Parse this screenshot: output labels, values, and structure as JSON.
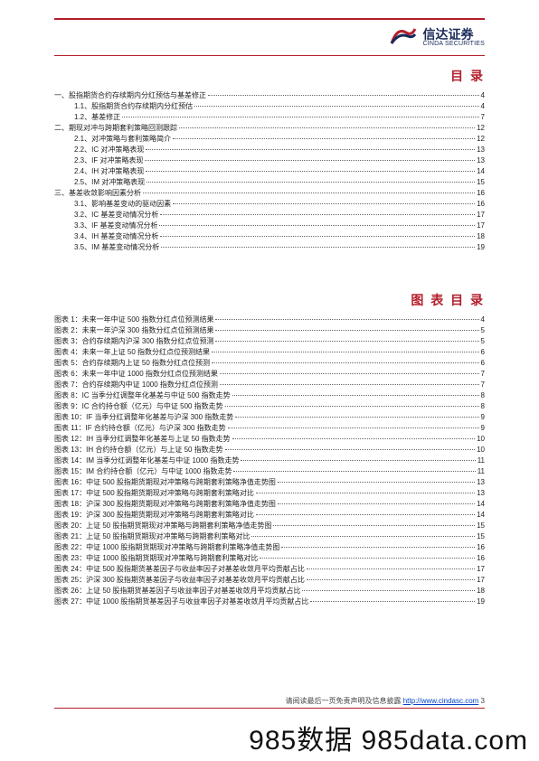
{
  "brand": {
    "cn": "信达证券",
    "en": "CINDA SECURITIES"
  },
  "titles": {
    "toc": "目 录",
    "figures": "图 表 目 录"
  },
  "toc": [
    {
      "level": 1,
      "label": "一、股指期货合约存续期内分红预估与基差修正",
      "page": 4
    },
    {
      "level": 2,
      "label": "1.1、股指期货合约存续期内分红预估",
      "page": 4
    },
    {
      "level": 2,
      "label": "1.2、基差修正",
      "page": 7
    },
    {
      "level": 1,
      "label": "二、期现对冲与跨期套利策略回测跟踪",
      "page": 12
    },
    {
      "level": 2,
      "label": "2.1、对冲策略与套利策略简介",
      "page": 12
    },
    {
      "level": 2,
      "label": "2.2、IC 对冲策略表现",
      "page": 13
    },
    {
      "level": 2,
      "label": "2.3、IF 对冲策略表现",
      "page": 13
    },
    {
      "level": 2,
      "label": "2.4、IH 对冲策略表现",
      "page": 14
    },
    {
      "level": 2,
      "label": "2.5、IM 对冲策略表现",
      "page": 15
    },
    {
      "level": 1,
      "label": "三、基差收敛影响因素分析",
      "page": 16
    },
    {
      "level": 2,
      "label": "3.1、影响基差变动的驱动因素",
      "page": 16
    },
    {
      "level": 2,
      "label": "3.2、IC 基差变动情况分析",
      "page": 17
    },
    {
      "level": 2,
      "label": "3.3、IF 基差变动情况分析",
      "page": 17
    },
    {
      "level": 2,
      "label": "3.4、IH 基差变动情况分析",
      "page": 18
    },
    {
      "level": 2,
      "label": "3.5、IM 基差变动情况分析",
      "page": 19
    }
  ],
  "figures": [
    {
      "label": "图表 1：未来一年中证 500 指数分红点位预测结果",
      "page": 4
    },
    {
      "label": "图表 2：未来一年沪深 300 指数分红点位预测结果",
      "page": 5
    },
    {
      "label": "图表 3：合约存续期内沪深 300 指数分红点位预测",
      "page": 5
    },
    {
      "label": "图表 4：未来一年上证 50 指数分红点位预测结果",
      "page": 6
    },
    {
      "label": "图表 5：合约存续期内上证 50 指数分红点位预测",
      "page": 6
    },
    {
      "label": "图表 6：未来一年中证 1000 指数分红点位预测结果",
      "page": 7
    },
    {
      "label": "图表 7：合约存续期内中证 1000 指数分红点位预测",
      "page": 7
    },
    {
      "label": "图表 8：IC 当季分红调整年化基差与中证 500 指数走势",
      "page": 8
    },
    {
      "label": "图表 9：IC 合约持仓额（亿元）与中证 500 指数走势",
      "page": 8
    },
    {
      "label": "图表 10：IF 当季分红调整年化基差与沪深 300 指数走势",
      "page": 9
    },
    {
      "label": "图表 11：IF 合约持仓额（亿元）与沪深 300 指数走势",
      "page": 9
    },
    {
      "label": "图表 12：IH 当季分红调整年化基差与上证 50 指数走势",
      "page": 10
    },
    {
      "label": "图表 13：IH 合约持仓额（亿元）与上证 50 指数走势",
      "page": 10
    },
    {
      "label": "图表 14：IM 当季分红调整年化基差与中证 1000 指数走势",
      "page": 11
    },
    {
      "label": "图表 15：IM 合约持仓额（亿元）与中证 1000 指数走势",
      "page": 11
    },
    {
      "label": "图表 16：中证 500 股指期货期现对冲策略与跨期套利策略净值走势图",
      "page": 13
    },
    {
      "label": "图表 17：中证 500 股指期货期现对冲策略与跨期套利策略对比",
      "page": 13
    },
    {
      "label": "图表 18：沪深 300 股指期货期现对冲策略与跨期套利策略净值走势图",
      "page": 14
    },
    {
      "label": "图表 19：沪深 300 股指期货期现对冲策略与跨期套利策略对比",
      "page": 14
    },
    {
      "label": "图表 20：上证 50 股指期货期现对冲策略与跨期套利策略净值走势图",
      "page": 15
    },
    {
      "label": "图表 21：上证 50 股指期货期现对冲策略与跨期套利策略对比",
      "page": 15
    },
    {
      "label": "图表 22：中证 1000 股指期货期现对冲策略与跨期套利策略净值走势图",
      "page": 16
    },
    {
      "label": "图表 23：中证 1000 股指期货期现对冲策略与跨期套利策略对比",
      "page": 16
    },
    {
      "label": "图表 24：中证 500 股指期货基差因子与收益率因子对基差收敛月平均贡献占比",
      "page": 17
    },
    {
      "label": "图表 25：沪深 300 股指期货基差因子与收益率因子对基差收敛月平均贡献占比",
      "page": 17
    },
    {
      "label": "图表 26：上证 50 股指期货基差因子与收益率因子对基差收敛月平均贡献占比",
      "page": 18
    },
    {
      "label": "图表 27：中证 1000 股指期货基差因子与收益率因子对基差收敛月平均贡献占比",
      "page": 19
    }
  ],
  "footer": {
    "prefix": "请阅读最后一页免责声明及信息披露 ",
    "link_text": "http://www.cindasc.com",
    "page_no": " 3"
  },
  "watermark": "985数据 985data.com"
}
